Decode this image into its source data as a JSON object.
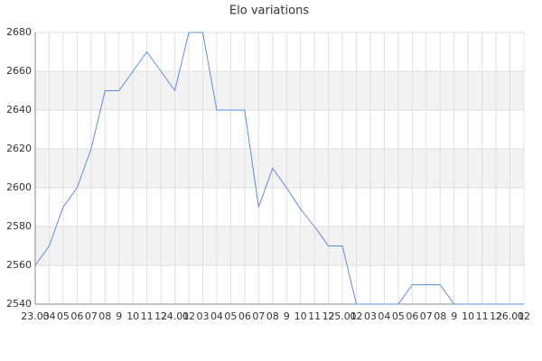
{
  "chart_data": {
    "type": "line",
    "title": "Elo variations",
    "categories": [
      "23.03",
      "04",
      "05",
      "06",
      "07",
      "08",
      "9",
      "10",
      "11",
      "12",
      "24.01",
      "02",
      "03",
      "04",
      "05",
      "06",
      "07",
      "08",
      "9",
      "10",
      "11",
      "12",
      "25.01",
      "02",
      "03",
      "04",
      "05",
      "06",
      "07",
      "08",
      "9",
      "10",
      "11",
      "12",
      "26.01",
      "02"
    ],
    "series": [
      {
        "name": "Elo",
        "color": "#5b8fd9",
        "values": [
          2560,
          2570,
          2590,
          2600,
          2620,
          2650,
          2650,
          2660,
          2670,
          2660,
          2650,
          2680,
          2680,
          2640,
          2640,
          2640,
          2590,
          2610,
          2600,
          2589,
          2580,
          2570,
          2570,
          2540,
          2540,
          2540,
          2540,
          2550,
          2550,
          2550,
          2540,
          2540,
          2540,
          2540,
          2540,
          2540
        ]
      }
    ],
    "ylim": [
      2540,
      2680
    ],
    "yticks": [
      2540,
      2560,
      2580,
      2600,
      2620,
      2640,
      2660,
      2680
    ],
    "grid": true
  }
}
